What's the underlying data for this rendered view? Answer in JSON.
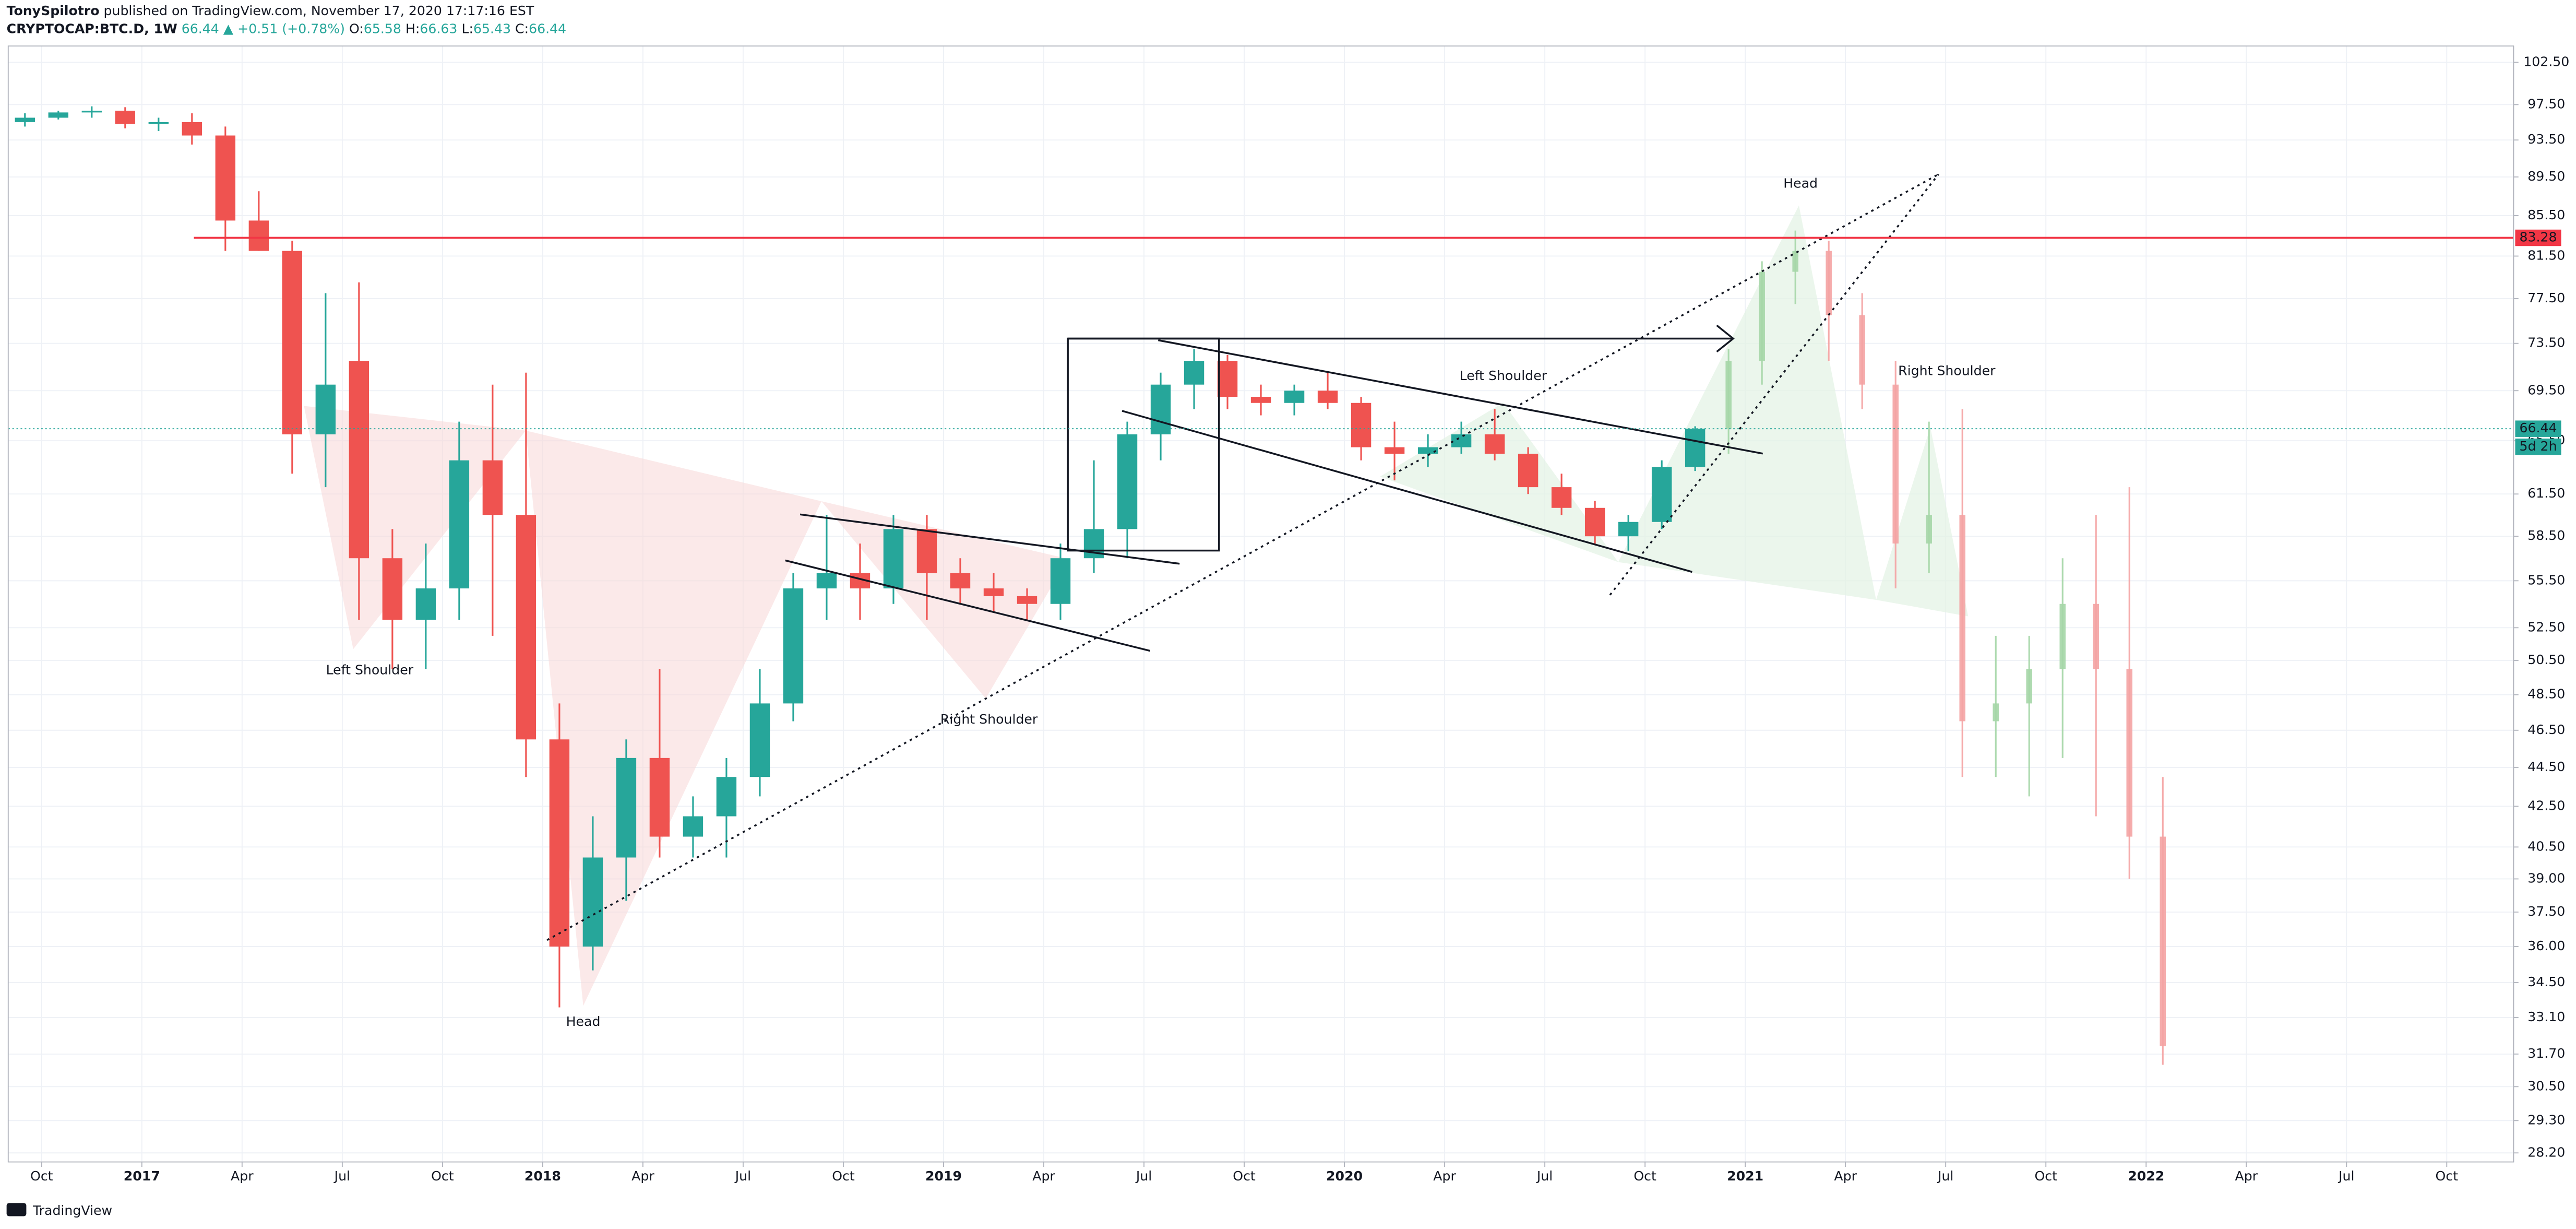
{
  "header": {
    "author": "TonySpilotro",
    "published": " published on TradingView.com, November 17, 2020 17:17:16 EST",
    "symbol": "CRYPTOCAP:BTC.D, 1W",
    "last": "66.44",
    "change": "▲ +0.51 (+0.78%)",
    "ohlc": [
      {
        "label": "O:",
        "value": "65.58"
      },
      {
        "label": "H:",
        "value": "66.63"
      },
      {
        "label": "L:",
        "value": "65.43"
      },
      {
        "label": "C:",
        "value": "66.44"
      }
    ]
  },
  "footer": {
    "brand": "TradingView"
  },
  "annotations": [
    "Left Shoulder",
    "Head",
    "Right Shoulder",
    "Left Shoulder",
    "Head",
    "Right Shoulder"
  ],
  "chart_data": {
    "type": "candlestick",
    "log_scale": true,
    "grid": true,
    "up_color": "#26a69a",
    "down_color": "#ef5350",
    "xlim": [
      "2016-09",
      "2022-12"
    ],
    "xticks": [
      {
        "value": "2016-10",
        "label": "Oct"
      },
      {
        "value": "2017-01",
        "label": "2017"
      },
      {
        "value": "2017-04",
        "label": "Apr"
      },
      {
        "value": "2017-07",
        "label": "Jul"
      },
      {
        "value": "2017-10",
        "label": "Oct"
      },
      {
        "value": "2018-01",
        "label": "2018"
      },
      {
        "value": "2018-04",
        "label": "Apr"
      },
      {
        "value": "2018-07",
        "label": "Jul"
      },
      {
        "value": "2018-10",
        "label": "Oct"
      },
      {
        "value": "2019-01",
        "label": "2019"
      },
      {
        "value": "2019-04",
        "label": "Apr"
      },
      {
        "value": "2019-07",
        "label": "Jul"
      },
      {
        "value": "2019-10",
        "label": "Oct"
      },
      {
        "value": "2020-01",
        "label": "2020"
      },
      {
        "value": "2020-04",
        "label": "Apr"
      },
      {
        "value": "2020-07",
        "label": "Jul"
      },
      {
        "value": "2020-10",
        "label": "Oct"
      },
      {
        "value": "2021-01",
        "label": "2021"
      },
      {
        "value": "2021-04",
        "label": "Apr"
      },
      {
        "value": "2021-07",
        "label": "Jul"
      },
      {
        "value": "2021-10",
        "label": "Oct"
      },
      {
        "value": "2022-01",
        "label": "2022"
      },
      {
        "value": "2022-04",
        "label": "Apr"
      },
      {
        "value": "2022-07",
        "label": "Jul"
      },
      {
        "value": "2022-10",
        "label": "Oct"
      }
    ],
    "ylim": [
      27.9,
      104.5
    ],
    "yticks": [
      {
        "value": 102.5,
        "label": "102.50"
      },
      {
        "value": 97.5,
        "label": "97.50"
      },
      {
        "value": 93.5,
        "label": "93.50"
      },
      {
        "value": 89.5,
        "label": "89.50"
      },
      {
        "value": 85.5,
        "label": "85.50"
      },
      {
        "value": 81.5,
        "label": "81.50"
      },
      {
        "value": 77.5,
        "label": "77.50"
      },
      {
        "value": 73.5,
        "label": "73.50"
      },
      {
        "value": 69.5,
        "label": "69.50"
      },
      {
        "value": 65.5,
        "label": "65.50"
      },
      {
        "value": 61.5,
        "label": "61.50"
      },
      {
        "value": 58.5,
        "label": "58.50"
      },
      {
        "value": 55.5,
        "label": "55.50"
      },
      {
        "value": 52.5,
        "label": "52.50"
      },
      {
        "value": 50.5,
        "label": "50.50"
      },
      {
        "value": 48.5,
        "label": "48.50"
      },
      {
        "value": 46.5,
        "label": "46.50"
      },
      {
        "value": 44.5,
        "label": "44.50"
      },
      {
        "value": 42.5,
        "label": "42.50"
      },
      {
        "value": 40.5,
        "label": "40.50"
      },
      {
        "value": 39,
        "label": "39.00"
      },
      {
        "value": 37.5,
        "label": "37.50"
      },
      {
        "value": 36,
        "label": "36.00"
      },
      {
        "value": 34.5,
        "label": "34.50"
      },
      {
        "value": 33.1,
        "label": "33.10"
      },
      {
        "value": 31.7,
        "label": "31.70"
      },
      {
        "value": 30.5,
        "label": "30.50"
      },
      {
        "value": 29.3,
        "label": "29.30"
      },
      {
        "value": 28.2,
        "label": "28.20"
      }
    ],
    "x": [
      "2016-09",
      "2016-10",
      "2016-11",
      "2016-12",
      "2017-01",
      "2017-02",
      "2017-03",
      "2017-04",
      "2017-05",
      "2017-06",
      "2017-07",
      "2017-08",
      "2017-09",
      "2017-10",
      "2017-11",
      "2017-12",
      "2018-01",
      "2018-02",
      "2018-03",
      "2018-04",
      "2018-05",
      "2018-06",
      "2018-07",
      "2018-08",
      "2018-09",
      "2018-10",
      "2018-11",
      "2018-12",
      "2019-01",
      "2019-02",
      "2019-03",
      "2019-04",
      "2019-05",
      "2019-06",
      "2019-07",
      "2019-08",
      "2019-09",
      "2019-10",
      "2019-11",
      "2019-12",
      "2020-01",
      "2020-02",
      "2020-03",
      "2020-04",
      "2020-05",
      "2020-06",
      "2020-07",
      "2020-08",
      "2020-09",
      "2020-10",
      "2020-11"
    ],
    "open": [
      95.5,
      96,
      96.6,
      96.8,
      95.3,
      95.5,
      94,
      85,
      82,
      66,
      72,
      57,
      53,
      55,
      64,
      60,
      46,
      36,
      40,
      45,
      41,
      42,
      44,
      48,
      55,
      56,
      55,
      59,
      56,
      55,
      54.5,
      54,
      57,
      59,
      66,
      70,
      72,
      69,
      68.5,
      69.5,
      68.5,
      65,
      64.5,
      65,
      66,
      64.5,
      62,
      60.5,
      58.5,
      59.5,
      63.5
    ],
    "high": [
      96.5,
      96.8,
      97.3,
      97.2,
      96,
      96.5,
      95,
      88,
      83,
      78,
      79,
      59,
      58,
      67,
      70,
      71,
      48,
      42,
      46,
      50,
      43,
      45,
      50,
      56,
      60,
      58,
      60,
      60,
      57,
      56,
      55,
      58,
      64,
      67,
      71,
      73,
      72.5,
      70,
      70,
      71,
      69,
      67,
      66,
      67,
      68,
      65,
      63,
      61,
      60,
      64,
      66.63
    ],
    "low": [
      95,
      95.8,
      96,
      94.8,
      94.5,
      93,
      82,
      82,
      63,
      62,
      53,
      50,
      50,
      53,
      52,
      44,
      33.5,
      35,
      38,
      40,
      40,
      40,
      43,
      47,
      53,
      53,
      54,
      53,
      54,
      53.5,
      53,
      53,
      56,
      57,
      64,
      68,
      68,
      67.5,
      67.5,
      68,
      64,
      62.5,
      63.5,
      64.5,
      64,
      61.5,
      60,
      58,
      57.5,
      59,
      63.2
    ],
    "close": [
      96,
      96.6,
      96.8,
      95.3,
      95.5,
      94,
      85,
      82,
      66,
      70,
      57,
      53,
      55,
      64,
      60,
      46,
      36,
      40,
      45,
      41,
      42,
      44,
      48,
      55,
      56,
      55,
      59,
      56,
      55,
      54.5,
      54,
      57,
      59,
      66,
      70,
      72,
      69,
      68.5,
      69.5,
      68.5,
      65,
      64.5,
      65,
      66,
      64.5,
      62,
      60.5,
      58.5,
      59.5,
      63.5,
      66.44
    ],
    "projection": {
      "up_color": "#a5d6a7",
      "down_color": "#f4a3a3",
      "x": [
        "2020-12",
        "2021-01",
        "2021-02",
        "2021-03",
        "2021-04",
        "2021-05",
        "2021-06",
        "2021-07",
        "2021-08",
        "2021-09",
        "2021-10",
        "2021-11",
        "2021-12",
        "2022-01"
      ],
      "open": [
        66.44,
        72,
        80,
        82,
        76,
        70,
        58,
        60,
        47,
        48,
        50,
        54,
        50,
        41
      ],
      "high": [
        73,
        81,
        84,
        83,
        78,
        72,
        67,
        68,
        52,
        52,
        57,
        60,
        62,
        44
      ],
      "low": [
        64.5,
        70,
        77,
        72,
        68,
        55,
        56,
        44,
        44,
        43,
        45,
        42,
        39,
        31.3
      ],
      "close": [
        72,
        80,
        82,
        76,
        70,
        58,
        60,
        47,
        48,
        50,
        54,
        50,
        41,
        32
      ]
    },
    "hline": {
      "value": 83.28,
      "color": "#f23645"
    },
    "last_price": {
      "value": 66.44,
      "countdown": "5d 2h",
      "color": "#26a69a"
    }
  }
}
